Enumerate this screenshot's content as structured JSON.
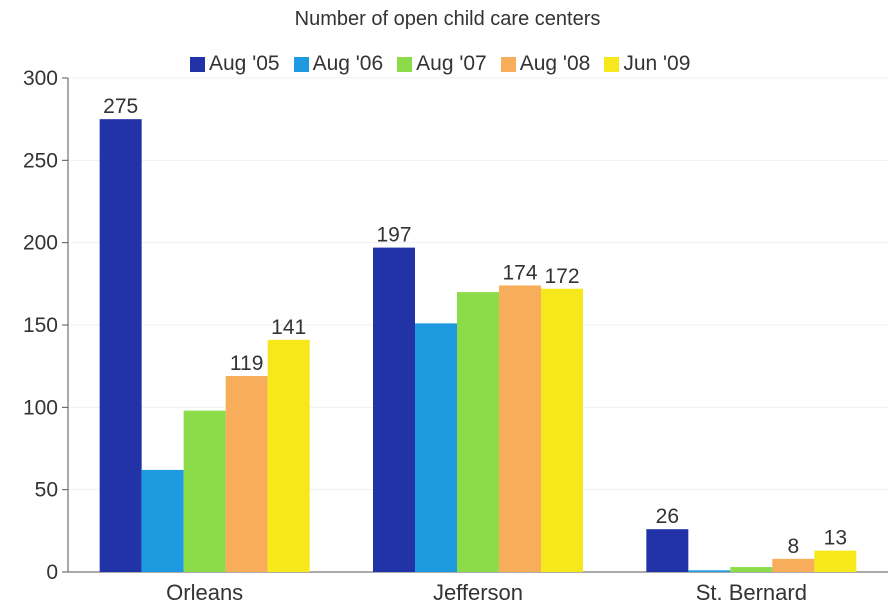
{
  "chart_data": {
    "type": "bar",
    "title": "Number of open child care centers",
    "categories": [
      "Orleans",
      "Jefferson",
      "St. Bernard"
    ],
    "ylim": [
      0,
      300
    ],
    "yticks": [
      0,
      50,
      100,
      150,
      200,
      250,
      300
    ],
    "series": [
      {
        "name": "Aug '05",
        "color": "#2233a8",
        "values": [
          275,
          197,
          26
        ],
        "labels": [
          "275",
          "197",
          "26"
        ]
      },
      {
        "name": "Aug '06",
        "color": "#1e9be0",
        "values": [
          62,
          151,
          1
        ],
        "labels": [
          "",
          "",
          ""
        ]
      },
      {
        "name": "Aug '07",
        "color": "#8cdc4a",
        "values": [
          98,
          170,
          3
        ],
        "labels": [
          "",
          "",
          ""
        ]
      },
      {
        "name": "Aug '08",
        "color": "#f7ad59",
        "values": [
          119,
          174,
          8
        ],
        "labels": [
          "119",
          "174",
          "8"
        ]
      },
      {
        "name": "Jun '09",
        "color": "#f6e81a",
        "values": [
          141,
          172,
          13
        ],
        "labels": [
          "141",
          "172",
          "13"
        ]
      }
    ],
    "grid": true,
    "legend": "top"
  }
}
